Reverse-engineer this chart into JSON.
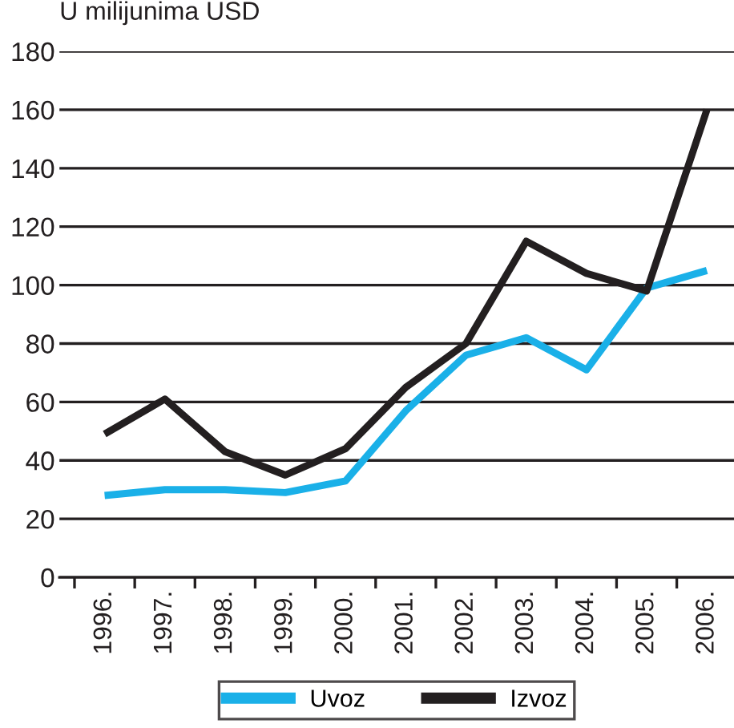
{
  "chart_data": {
    "type": "line",
    "ylabel": "U milijunima USD",
    "categories": [
      "1996.",
      "1997.",
      "1998.",
      "1999.",
      "2000.",
      "2001.",
      "2002.",
      "2003.",
      "2004.",
      "2005.",
      "2006."
    ],
    "series": [
      {
        "name": "Uvoz",
        "color": "#1ab0e8",
        "values": [
          28,
          30,
          30,
          29,
          33,
          57,
          76,
          82,
          71,
          99,
          105
        ]
      },
      {
        "name": "Izvoz",
        "color": "#231f20",
        "values": [
          49,
          61,
          43,
          35,
          44,
          65,
          80,
          115,
          104,
          98,
          160
        ]
      }
    ],
    "ylim": [
      0,
      180
    ],
    "yticks": [
      0,
      20,
      40,
      60,
      80,
      100,
      120,
      140,
      160,
      180
    ],
    "grid": "y",
    "legend": "bottom",
    "marker": "none",
    "line_style": "solid"
  }
}
